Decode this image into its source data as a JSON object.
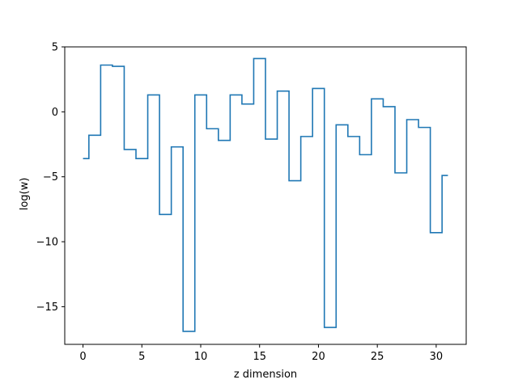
{
  "chart_data": {
    "type": "line",
    "drawstyle": "steps-mid",
    "title": "",
    "xlabel": "z dimension",
    "ylabel": "log(w)",
    "xlim": [
      -1.55,
      32.55
    ],
    "ylim": [
      -17.9,
      5.0
    ],
    "xticks": [
      0,
      5,
      10,
      15,
      20,
      25,
      30
    ],
    "yticks": [
      -15,
      -10,
      -5,
      0,
      5
    ],
    "ytick_labels": [
      "−15",
      "−10",
      "−5",
      "0",
      "5"
    ],
    "grid": false,
    "legend": "none",
    "colors": {
      "series": "#1f77b4"
    },
    "series": [
      {
        "x": [
          0,
          1,
          2,
          3,
          4,
          5,
          6,
          7,
          8,
          9,
          10,
          11,
          12,
          13,
          14,
          15,
          16,
          17,
          18,
          19,
          20,
          21,
          22,
          23,
          24,
          25,
          26,
          27,
          28,
          29,
          30,
          31
        ],
        "values": [
          -3.6,
          -1.8,
          3.6,
          3.5,
          -2.9,
          -3.6,
          1.3,
          -7.9,
          -2.7,
          -16.9,
          1.3,
          -1.3,
          -2.2,
          1.3,
          0.6,
          4.1,
          -2.1,
          1.6,
          -5.3,
          -1.9,
          1.8,
          -16.6,
          -1.0,
          -1.9,
          -3.3,
          1.0,
          0.4,
          -4.7,
          -0.6,
          -1.2,
          -9.3,
          -4.9
        ]
      }
    ]
  }
}
